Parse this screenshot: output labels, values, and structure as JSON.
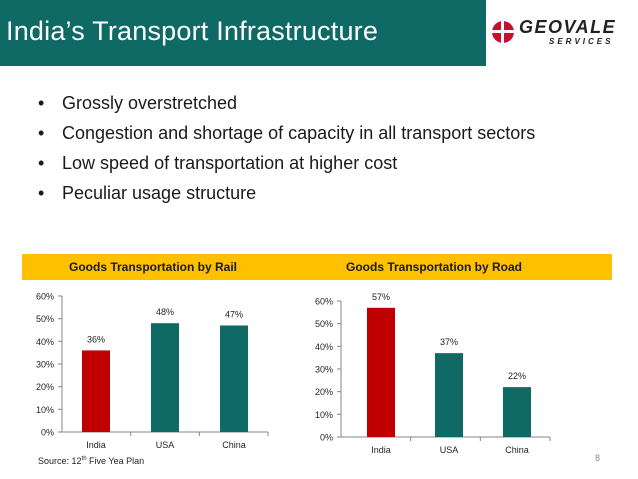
{
  "slide": {
    "title": "India’s Transport Infrastructure",
    "page_number": "8",
    "bullets": [
      "Grossly overstretched",
      "Congestion and shortage of capacity in all transport sectors",
      "Low speed of transportation at higher cost",
      "Peculiar usage structure"
    ],
    "source": {
      "prefix": "Source: 12",
      "superscript": "th",
      "suffix": " Five Yea Plan"
    }
  },
  "logo": {
    "text_top": "GEOVALE",
    "text_bottom": "SERVICES",
    "colors": {
      "primary": "#c8102e",
      "secondary": "#7f7f7f"
    }
  },
  "colors": {
    "title_bar": "#0f6a66",
    "band": "#ffc000",
    "india_bar": "#c00000",
    "other_bar": "#0f6a66"
  },
  "chart_data": [
    {
      "type": "bar",
      "title": "Goods Transportation by Rail",
      "categories": [
        "India",
        "USA",
        "China"
      ],
      "values": [
        36,
        48,
        47
      ],
      "value_labels": [
        "36%",
        "48%",
        "47%"
      ],
      "ylim": [
        0,
        60
      ],
      "yticks": [
        "0%",
        "10%",
        "20%",
        "30%",
        "40%",
        "50%",
        "60%"
      ],
      "grid": false
    },
    {
      "type": "bar",
      "title": "Goods Transportation by Road",
      "categories": [
        "India",
        "USA",
        "China"
      ],
      "values": [
        57,
        37,
        22
      ],
      "value_labels": [
        "57%",
        "37%",
        "22%"
      ],
      "ylim": [
        0,
        60
      ],
      "yticks": [
        "0%",
        "10%",
        "20%",
        "30%",
        "40%",
        "50%",
        "60%"
      ],
      "grid": false
    }
  ]
}
